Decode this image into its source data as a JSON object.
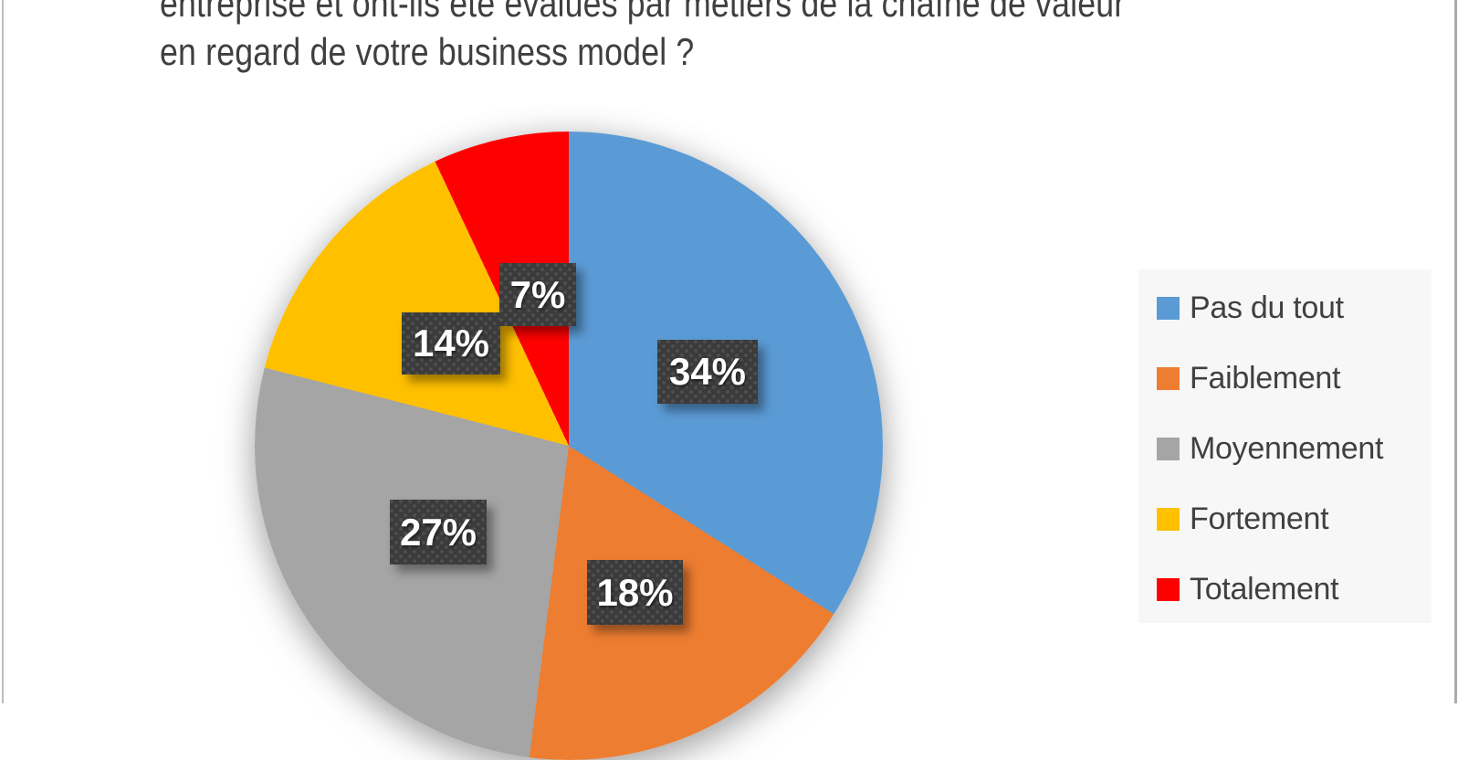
{
  "page": {
    "background": "#ffffff",
    "edge_line_color": "#b5b5b5"
  },
  "title": {
    "line1": "entreprise et ont-ils été évalués par métiers de la chaîne de valeur",
    "line2": "en regard de votre business model ?",
    "color": "#3f3f3f"
  },
  "chart_data": {
    "type": "pie",
    "title": "entreprise et ont-ils été évalués par métiers de la chaîne de valeur en regard de votre business model ?",
    "categories": [
      "Pas du tout",
      "Faiblement",
      "Moyennement",
      "Fortement",
      "Totalement"
    ],
    "values": [
      34,
      18,
      27,
      14,
      7
    ],
    "unit": "percent",
    "colors": [
      "#5B9BD5",
      "#ED7D31",
      "#A5A5A5",
      "#FFC000",
      "#FF0000"
    ],
    "start_angle_deg": 0,
    "direction": "clockwise",
    "data_labels": [
      "34%",
      "18%",
      "27%",
      "14%",
      "7%"
    ],
    "data_label_style": {
      "background": "#3b3b3b",
      "pattern": "dotted",
      "text_color": "#ffffff"
    },
    "legend_position": "right"
  },
  "legend": {
    "background": "#f7f7f7",
    "items": [
      {
        "label": "Pas du tout",
        "color": "#5B9BD5"
      },
      {
        "label": "Faiblement",
        "color": "#ED7D31"
      },
      {
        "label": "Moyennement",
        "color": "#A5A5A5"
      },
      {
        "label": "Fortement",
        "color": "#FFC000"
      },
      {
        "label": "Totalement",
        "color": "#FF0000"
      }
    ]
  }
}
